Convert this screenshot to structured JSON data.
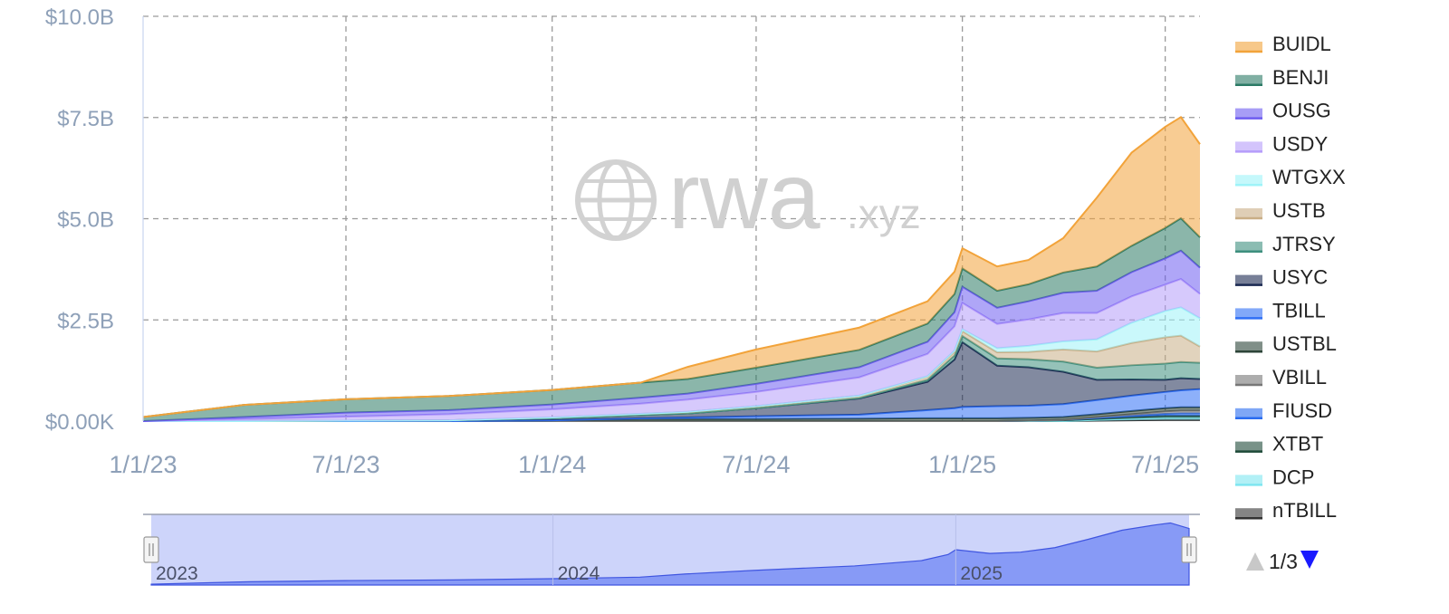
{
  "watermark": {
    "brand": "rwa",
    "suffix": ".xyz"
  },
  "chart_data": {
    "type": "area",
    "stacked": true,
    "title": "",
    "xlabel": "",
    "ylabel": "",
    "x_axis": {
      "start": "2023-01-01",
      "end": "2025-08-01",
      "tick_labels": [
        "1/1/23",
        "7/1/23",
        "1/1/24",
        "7/1/24",
        "1/1/25",
        "7/1/25"
      ]
    },
    "y_axis": {
      "min": 0,
      "max": 10,
      "unit": "billion USD",
      "tick_labels": [
        "$0.00K",
        "$2.5B",
        "$5.0B",
        "$7.5B",
        "$10.0B"
      ]
    },
    "grid": true,
    "legend_position": "right",
    "x": [
      "2023-01-01",
      "2023-04-01",
      "2023-07-01",
      "2023-10-01",
      "2024-01-01",
      "2024-03-20",
      "2024-05-01",
      "2024-07-01",
      "2024-10-01",
      "2024-12-01",
      "2024-12-25",
      "2025-01-01",
      "2025-02-01",
      "2025-03-01",
      "2025-04-01",
      "2025-05-01",
      "2025-06-01",
      "2025-07-01",
      "2025-07-15",
      "2025-08-01"
    ],
    "series": [
      {
        "name": "nTBILL",
        "color": "#333333",
        "values": [
          0,
          0,
          0,
          0,
          0,
          0,
          0,
          0,
          0,
          0,
          0,
          0,
          0,
          0,
          0,
          0.01,
          0.02,
          0.03,
          0.03,
          0.03
        ]
      },
      {
        "name": "DCP",
        "color": "#7fe6f0",
        "values": [
          0,
          0,
          0,
          0,
          0,
          0,
          0,
          0,
          0,
          0,
          0,
          0,
          0,
          0,
          0,
          0.02,
          0.04,
          0.05,
          0.05,
          0.05
        ]
      },
      {
        "name": "XTBT",
        "color": "#1e4a38",
        "values": [
          0,
          0,
          0,
          0,
          0,
          0,
          0,
          0,
          0,
          0,
          0,
          0,
          0,
          0.01,
          0.02,
          0.03,
          0.04,
          0.05,
          0.05,
          0.05
        ]
      },
      {
        "name": "FIUSD",
        "color": "#2a6cf0",
        "values": [
          0,
          0,
          0,
          0,
          0,
          0,
          0,
          0,
          0,
          0,
          0,
          0,
          0,
          0,
          0.01,
          0.02,
          0.03,
          0.05,
          0.06,
          0.06
        ]
      },
      {
        "name": "VBILL",
        "color": "#777777",
        "values": [
          0,
          0,
          0,
          0,
          0,
          0,
          0,
          0,
          0,
          0,
          0,
          0,
          0,
          0,
          0,
          0.02,
          0.04,
          0.06,
          0.07,
          0.07
        ]
      },
      {
        "name": "USTBL",
        "color": "#2c4438",
        "values": [
          0,
          0,
          0,
          0,
          0.02,
          0.05,
          0.05,
          0.05,
          0.06,
          0.07,
          0.07,
          0.07,
          0.07,
          0.07,
          0.07,
          0.07,
          0.08,
          0.08,
          0.08,
          0.08
        ]
      },
      {
        "name": "TBILL",
        "color": "#2f6ff5",
        "values": [
          0,
          0,
          0,
          0,
          0,
          0.02,
          0.04,
          0.07,
          0.1,
          0.2,
          0.25,
          0.28,
          0.3,
          0.3,
          0.32,
          0.35,
          0.38,
          0.4,
          0.42,
          0.45
        ]
      },
      {
        "name": "USYC",
        "color": "#1c2a52",
        "values": [
          0,
          0,
          0.01,
          0.02,
          0.05,
          0.08,
          0.1,
          0.2,
          0.4,
          0.7,
          1.2,
          1.6,
          1.0,
          0.95,
          0.8,
          0.5,
          0.4,
          0.3,
          0.3,
          0.25
        ]
      },
      {
        "name": "JTRSY",
        "color": "#3e8f7e",
        "values": [
          0,
          0,
          0,
          0,
          0,
          0,
          0,
          0,
          0.01,
          0.05,
          0.1,
          0.15,
          0.18,
          0.2,
          0.25,
          0.3,
          0.35,
          0.4,
          0.4,
          0.4
        ]
      },
      {
        "name": "USTB",
        "color": "#c9ae86",
        "values": [
          0,
          0,
          0,
          0,
          0.02,
          0.03,
          0.04,
          0.05,
          0.06,
          0.08,
          0.1,
          0.12,
          0.15,
          0.18,
          0.3,
          0.4,
          0.55,
          0.65,
          0.65,
          0.4
        ]
      },
      {
        "name": "WTGXX",
        "color": "#9ff3f8",
        "values": [
          0,
          0,
          0,
          0,
          0,
          0,
          0,
          0,
          0,
          0.01,
          0.02,
          0.05,
          0.1,
          0.15,
          0.2,
          0.3,
          0.5,
          0.65,
          0.7,
          0.7
        ]
      },
      {
        "name": "USDY",
        "color": "#b59cfa",
        "values": [
          0,
          0.05,
          0.1,
          0.15,
          0.2,
          0.25,
          0.3,
          0.35,
          0.45,
          0.55,
          0.6,
          0.65,
          0.6,
          0.65,
          0.7,
          0.65,
          0.65,
          0.65,
          0.7,
          0.6
        ]
      },
      {
        "name": "OUSG",
        "color": "#6d5cf0",
        "values": [
          0,
          0.05,
          0.1,
          0.1,
          0.12,
          0.15,
          0.15,
          0.2,
          0.25,
          0.3,
          0.35,
          0.4,
          0.4,
          0.45,
          0.5,
          0.55,
          0.6,
          0.65,
          0.7,
          0.65
        ]
      },
      {
        "name": "BENJI",
        "color": "#2c7a65",
        "values": [
          0.1,
          0.3,
          0.33,
          0.35,
          0.36,
          0.37,
          0.36,
          0.4,
          0.43,
          0.45,
          0.45,
          0.45,
          0.42,
          0.42,
          0.5,
          0.6,
          0.65,
          0.75,
          0.8,
          0.75
        ]
      },
      {
        "name": "BUIDL",
        "color": "#f2a33a",
        "values": [
          0,
          0,
          0,
          0,
          0,
          0,
          0.3,
          0.45,
          0.55,
          0.55,
          0.55,
          0.5,
          0.6,
          0.6,
          0.85,
          1.7,
          2.3,
          2.5,
          2.5,
          2.3
        ]
      }
    ]
  },
  "navigator": {
    "year_labels": [
      "2023",
      "2024",
      "2025"
    ]
  },
  "pager": {
    "text": "1/3"
  }
}
